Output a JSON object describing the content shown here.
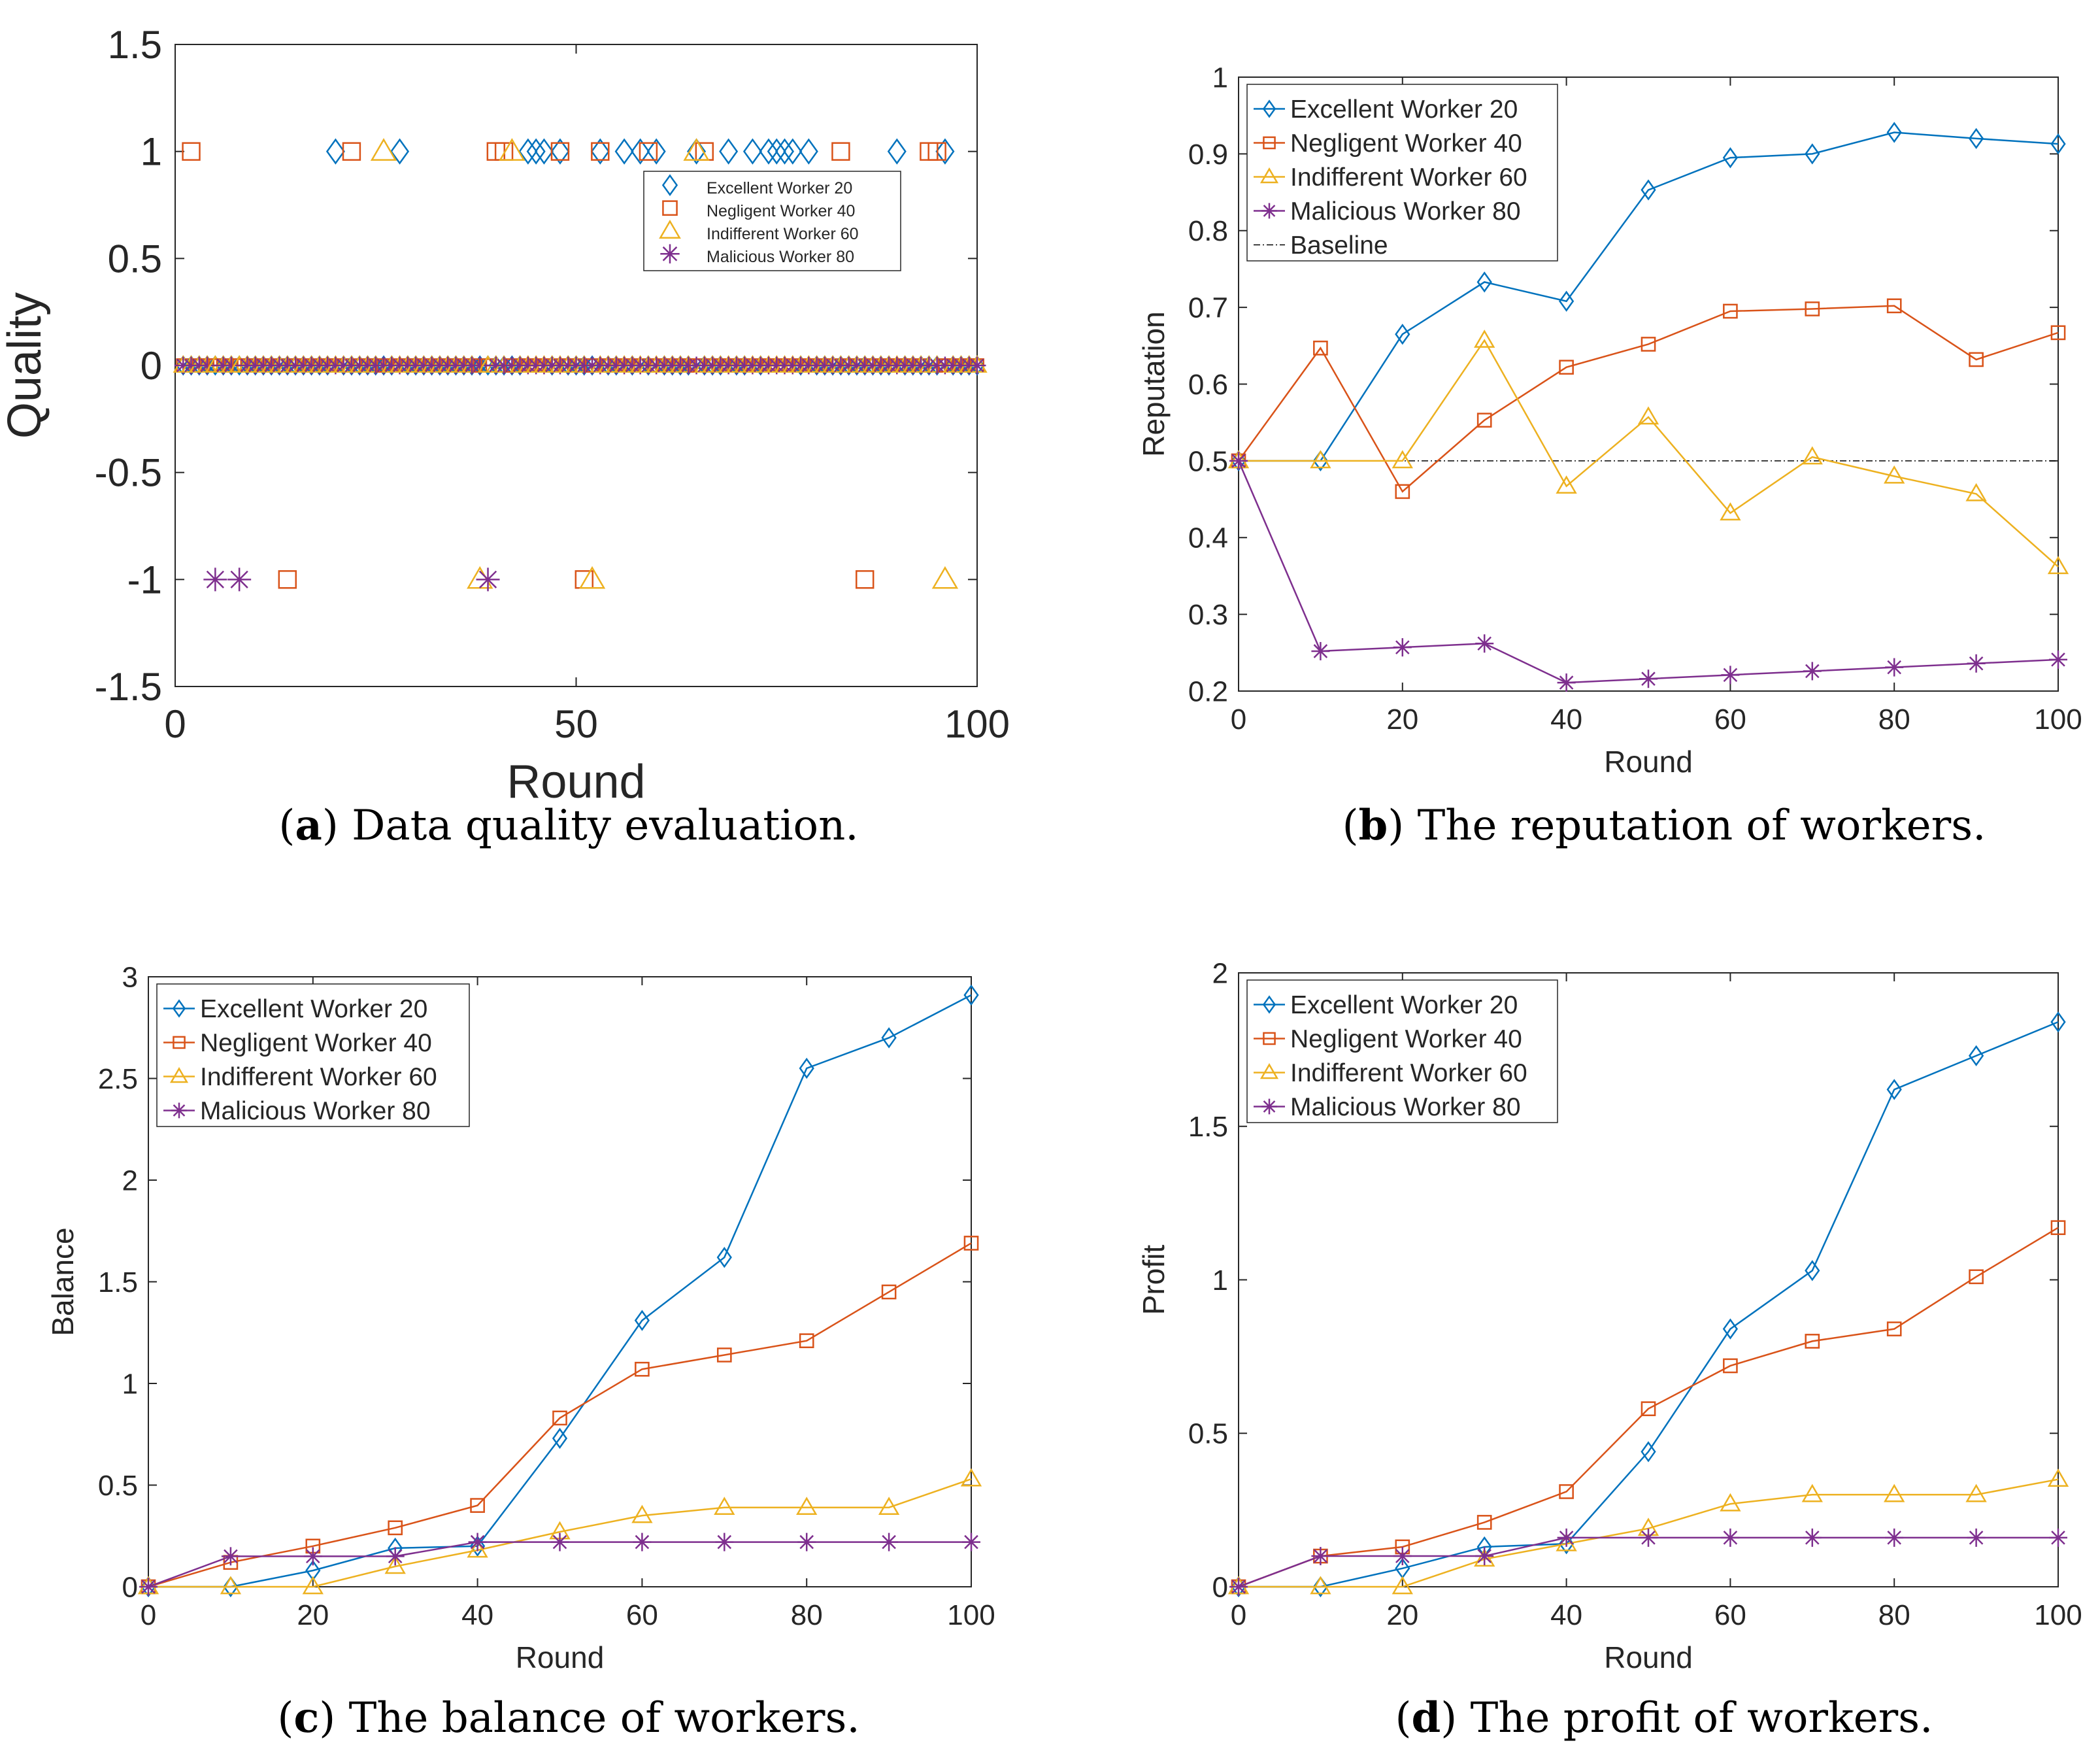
{
  "colors": {
    "excellent": "#0072BD",
    "negligent": "#D95319",
    "indifferent": "#EDB120",
    "malicious": "#7E2F8E",
    "axis": "#262626",
    "baseline": "#000000"
  },
  "captions": [
    {
      "letter": "a",
      "text": "Data quality evaluation."
    },
    {
      "letter": "b",
      "text": "The reputation of workers."
    },
    {
      "letter": "c",
      "text": "The balance of workers."
    },
    {
      "letter": "d",
      "text": "The profit of workers."
    }
  ],
  "chart_data": [
    {
      "id": "a",
      "type": "scatter",
      "title": "",
      "xlabel": "Round",
      "ylabel": "Quality",
      "xlim": [
        0,
        100
      ],
      "ylim": [
        -1.5,
        1.5
      ],
      "xticks": [
        0,
        50,
        100
      ],
      "yticks": [
        -1.5,
        -1,
        -0.5,
        0,
        0.5,
        1,
        1.5
      ],
      "x_tick_labels": [
        "0",
        "50",
        "100"
      ],
      "y_tick_labels": [
        "-1.5",
        "-1",
        "-0.5",
        "0",
        "0.5",
        "1",
        "1.5"
      ],
      "legend_position": "inside-right",
      "series": [
        {
          "key": "excellent",
          "name": "Excellent Worker 20",
          "marker": "diamond",
          "ones": [
            20,
            28,
            44,
            45,
            46,
            48,
            53,
            56,
            58,
            60,
            65,
            69,
            72,
            74,
            75,
            76,
            77,
            79,
            90,
            96
          ],
          "minus_ones": []
        },
        {
          "key": "negligent",
          "name": "Negligent Worker 40",
          "marker": "square",
          "ones": [
            2,
            22,
            40,
            41,
            48,
            53,
            59,
            66,
            83,
            94,
            95
          ],
          "minus_ones": [
            14,
            51,
            86
          ]
        },
        {
          "key": "indifferent",
          "name": "Indifferent Worker 60",
          "marker": "triangle",
          "ones": [
            26,
            42,
            65
          ],
          "minus_ones": [
            38,
            52,
            96
          ]
        },
        {
          "key": "malicious",
          "name": "Malicious Worker 80",
          "marker": "star",
          "ones": [],
          "minus_ones": [
            5,
            8,
            39
          ]
        }
      ]
    },
    {
      "id": "b",
      "type": "line",
      "title": "",
      "xlabel": "Round",
      "ylabel": "Reputation",
      "xlim": [
        0,
        100
      ],
      "ylim": [
        0.2,
        1
      ],
      "xticks": [
        0,
        20,
        40,
        60,
        80,
        100
      ],
      "yticks": [
        0.2,
        0.3,
        0.4,
        0.5,
        0.6,
        0.7,
        0.8,
        0.9,
        1
      ],
      "x_tick_labels": [
        "0",
        "20",
        "40",
        "60",
        "80",
        "100"
      ],
      "y_tick_labels": [
        "0.2",
        "0.3",
        "0.4",
        "0.5",
        "0.6",
        "0.7",
        "0.8",
        "0.9",
        "1"
      ],
      "x": [
        0,
        10,
        20,
        30,
        40,
        50,
        60,
        70,
        80,
        90,
        100
      ],
      "legend_position": "top-left",
      "series": [
        {
          "key": "excellent",
          "name": "Excellent Worker 20",
          "marker": "diamond",
          "values": [
            0.5,
            0.5,
            0.665,
            0.733,
            0.708,
            0.853,
            0.895,
            0.9,
            0.928,
            0.92,
            0.913
          ]
        },
        {
          "key": "negligent",
          "name": "Negligent Worker 40",
          "marker": "square",
          "values": [
            0.5,
            0.647,
            0.46,
            0.553,
            0.622,
            0.652,
            0.695,
            0.698,
            0.702,
            0.632,
            0.667
          ]
        },
        {
          "key": "indifferent",
          "name": "Indifferent Worker 60",
          "marker": "triangle",
          "values": [
            0.5,
            0.5,
            0.5,
            0.657,
            0.467,
            0.557,
            0.432,
            0.505,
            0.48,
            0.457,
            0.362
          ]
        },
        {
          "key": "malicious",
          "name": "Malicious Worker 80",
          "marker": "star",
          "values": [
            0.5,
            0.252,
            0.257,
            0.262,
            0.211,
            0.216,
            0.221,
            0.226,
            0.231,
            0.236,
            0.241
          ]
        }
      ],
      "baseline": {
        "name": "Baseline",
        "value": 0.5
      }
    },
    {
      "id": "c",
      "type": "line",
      "title": "",
      "xlabel": "Round",
      "ylabel": "Balance",
      "xlim": [
        0,
        100
      ],
      "ylim": [
        0,
        3
      ],
      "xticks": [
        0,
        20,
        40,
        60,
        80,
        100
      ],
      "yticks": [
        0,
        0.5,
        1,
        1.5,
        2,
        2.5,
        3
      ],
      "x_tick_labels": [
        "0",
        "20",
        "40",
        "60",
        "80",
        "100"
      ],
      "y_tick_labels": [
        "0",
        "0.5",
        "1",
        "1.5",
        "2",
        "2.5",
        "3"
      ],
      "x": [
        0,
        10,
        20,
        30,
        40,
        50,
        60,
        70,
        80,
        90,
        100
      ],
      "legend_position": "top-left",
      "series": [
        {
          "key": "excellent",
          "name": "Excellent Worker 20",
          "marker": "diamond",
          "values": [
            0,
            0,
            0.08,
            0.19,
            0.2,
            0.73,
            1.31,
            1.62,
            2.55,
            2.7,
            2.91
          ]
        },
        {
          "key": "negligent",
          "name": "Negligent Worker 40",
          "marker": "square",
          "values": [
            0,
            0.12,
            0.2,
            0.29,
            0.4,
            0.83,
            1.07,
            1.14,
            1.21,
            1.45,
            1.69
          ]
        },
        {
          "key": "indifferent",
          "name": "Indifferent Worker 60",
          "marker": "triangle",
          "values": [
            0,
            0,
            0,
            0.1,
            0.18,
            0.27,
            0.35,
            0.39,
            0.39,
            0.39,
            0.53
          ]
        },
        {
          "key": "malicious",
          "name": "Malicious Worker 80",
          "marker": "star",
          "values": [
            0,
            0.15,
            0.15,
            0.15,
            0.22,
            0.22,
            0.22,
            0.22,
            0.22,
            0.22,
            0.22
          ]
        }
      ]
    },
    {
      "id": "d",
      "type": "line",
      "title": "",
      "xlabel": "Round",
      "ylabel": "Profit",
      "xlim": [
        0,
        100
      ],
      "ylim": [
        0,
        2
      ],
      "xticks": [
        0,
        20,
        40,
        60,
        80,
        100
      ],
      "yticks": [
        0,
        0.5,
        1,
        1.5,
        2
      ],
      "x_tick_labels": [
        "0",
        "20",
        "40",
        "60",
        "80",
        "100"
      ],
      "y_tick_labels": [
        "0",
        "0.5",
        "1",
        "1.5",
        "2"
      ],
      "x": [
        0,
        10,
        20,
        30,
        40,
        50,
        60,
        70,
        80,
        90,
        100
      ],
      "legend_position": "top-left",
      "series": [
        {
          "key": "excellent",
          "name": "Excellent Worker 20",
          "marker": "diamond",
          "values": [
            0,
            0,
            0.06,
            0.13,
            0.14,
            0.44,
            0.84,
            1.03,
            1.62,
            1.73,
            1.84
          ]
        },
        {
          "key": "negligent",
          "name": "Negligent Worker 40",
          "marker": "square",
          "values": [
            0,
            0.1,
            0.13,
            0.21,
            0.31,
            0.58,
            0.72,
            0.8,
            0.84,
            1.01,
            1.17
          ]
        },
        {
          "key": "indifferent",
          "name": "Indifferent Worker 60",
          "marker": "triangle",
          "values": [
            0,
            0,
            0,
            0.09,
            0.14,
            0.19,
            0.27,
            0.3,
            0.3,
            0.3,
            0.35
          ]
        },
        {
          "key": "malicious",
          "name": "Malicious Worker 80",
          "marker": "star",
          "values": [
            0,
            0.1,
            0.1,
            0.1,
            0.16,
            0.16,
            0.16,
            0.16,
            0.16,
            0.16,
            0.16
          ]
        }
      ]
    }
  ]
}
